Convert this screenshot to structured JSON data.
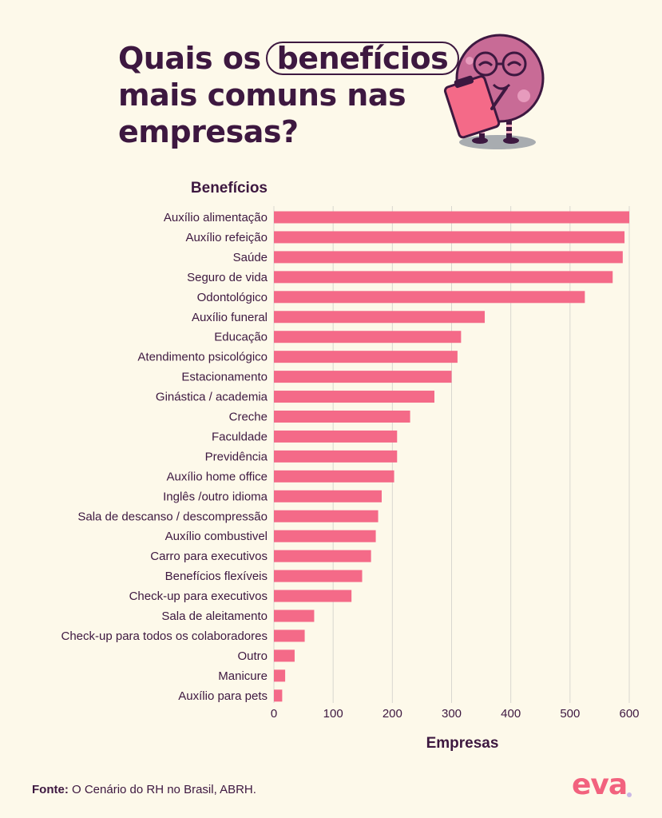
{
  "title": {
    "line1_pre": "Quais os",
    "line1_highlight": "benefícios",
    "line2": "mais comuns nas",
    "line3": "empresas?"
  },
  "source": {
    "label": "Fonte:",
    "text": "O Cenário do RH no Brasil, ABRH."
  },
  "brand": {
    "logo": "eva",
    "mascot": "mascot-icon"
  },
  "colors": {
    "bar": "#f46a88",
    "text": "#3d1840",
    "background": "#fdf9ea",
    "grid": "#d9d7d0"
  },
  "chart_data": {
    "type": "bar",
    "orientation": "horizontal",
    "ylabel": "Benefícios",
    "xlabel": "Empresas",
    "xlim": [
      0,
      600
    ],
    "xticks": [
      0,
      100,
      200,
      300,
      400,
      500,
      600
    ],
    "grid": "vertical",
    "categories": [
      "Auxílio alimentação",
      "Auxílio refeição",
      "Saúde",
      "Seguro de vida",
      "Odontológico",
      "Auxílio funeral",
      "Educação",
      "Atendimento psicológico",
      "Estacionamento",
      "Ginástica / academia",
      "Creche",
      "Faculdade",
      "Previdência",
      "Auxílio home office",
      "Inglês /outro idioma",
      "Sala de descanso / descompressão",
      "Auxílio combustivel",
      "Carro para executivos",
      "Benefícios flexíveis",
      "Check-up para executivos",
      "Sala de aleitamento",
      "Check-up para todos os colaboradores",
      "Outro",
      "Manicure",
      "Auxílio para pets"
    ],
    "values": [
      600,
      592,
      589,
      572,
      525,
      356,
      316,
      310,
      300,
      271,
      230,
      208,
      208,
      203,
      182,
      176,
      172,
      164,
      149,
      131,
      68,
      52,
      35,
      19,
      14
    ]
  }
}
